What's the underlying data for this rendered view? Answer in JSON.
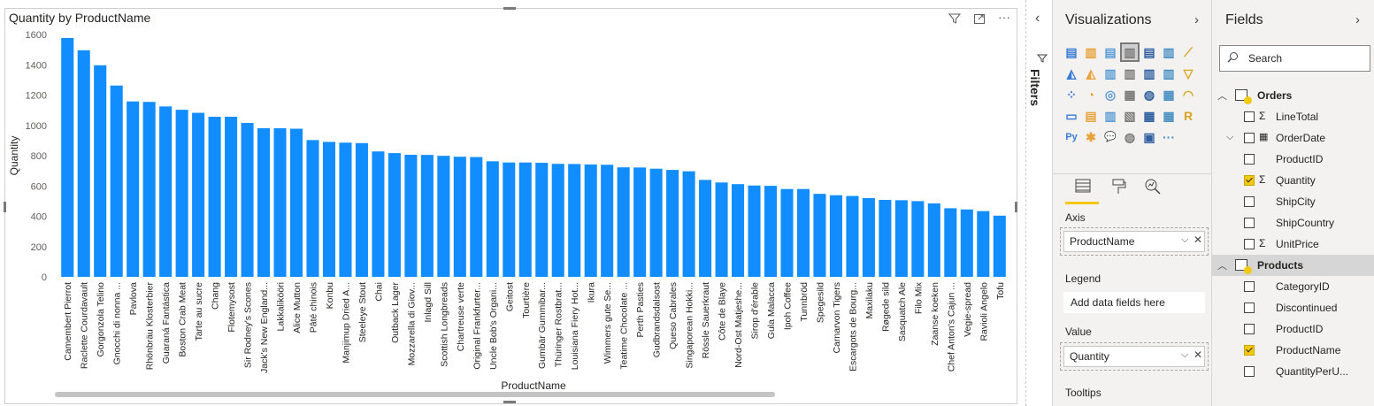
{
  "visual": {
    "title": "Quantity by ProductName",
    "header_icons": [
      "filter-icon",
      "focus-mode-icon",
      "more-options-icon"
    ]
  },
  "chart_data": {
    "type": "bar",
    "title": "Quantity by ProductName",
    "xlabel": "ProductName",
    "ylabel": "Quantity",
    "ylim": [
      0,
      1600
    ],
    "yticks": [
      0,
      200,
      400,
      600,
      800,
      1000,
      1200,
      1400,
      1600
    ],
    "grid": false,
    "bar_color": "#118dff",
    "categories": [
      "Camembert Pierrot",
      "Raclette Courdavault",
      "Gorgonzola Telino",
      "Gnocchi di nonna ...",
      "Pavlova",
      "Rhönbräu Klosterbier",
      "Guaraná Fantástica",
      "Boston Crab Meat",
      "Tarte au sucre",
      "Chang",
      "Flotemysost",
      "Sir Rodney's Scones",
      "Jack's New England...",
      "Lakkalikööri",
      "Alice Mutton",
      "Pâté chinois",
      "Konbu",
      "Manjimup Dried A...",
      "Steeleye Stout",
      "Chai",
      "Outback Lager",
      "Mozzarella di Giov...",
      "Inlagd Sill",
      "Scottish Longbreads",
      "Chartreuse verte",
      "Original Frankfurter...",
      "Uncle Bob's Organi...",
      "Geitost",
      "Tourtière",
      "Gumbär Gummibar...",
      "Thüringer Rostbrat...",
      "Louisiana Fiery Hot...",
      "Ikura",
      "Wimmers gute Se...",
      "Teatime Chocolate ...",
      "Perth Pasties",
      "Gudbrandsdalsost",
      "Queso Cabrales",
      "Singaporean Hokki...",
      "Rössle Sauerkraut",
      "Côte de Blaye",
      "Nord-Ost Matjeshe...",
      "Sirop d'érable",
      "Gula Malacca",
      "Ipoh Coffee",
      "Tunnbröd",
      "Spegesild",
      "Carnarvon Tigers",
      "Escargots de Bourg...",
      "Maxilaku",
      "Røgede sild",
      "Sasquatch Ale",
      "Filo Mix",
      "Zaanse koeken",
      "Chef Anton's Cajun ...",
      "Vegie-spread",
      "Ravioli Angelo",
      "Tofu"
    ],
    "values": [
      1577,
      1496,
      1397,
      1263,
      1158,
      1155,
      1125,
      1103,
      1083,
      1057,
      1057,
      1016,
      981,
      981,
      978,
      903,
      891,
      886,
      883,
      828,
      817,
      806,
      805,
      799,
      793,
      791,
      763,
      755,
      755,
      753,
      746,
      745,
      742,
      740,
      723,
      722,
      714,
      706,
      697,
      640,
      623,
      612,
      603,
      601,
      580,
      580,
      548,
      539,
      534,
      520,
      508,
      506,
      500,
      485,
      453,
      445,
      434,
      404
    ]
  },
  "filters_pane": {
    "label": "Filters"
  },
  "visualizations_pane": {
    "title": "Visualizations",
    "tabs": [
      "fields-tab",
      "format-tab",
      "analytics-tab"
    ],
    "wells": [
      {
        "label": "Axis",
        "value": "ProductName"
      },
      {
        "label": "Legend",
        "placeholder": "Add data fields here"
      },
      {
        "label": "Value",
        "value": "Quantity"
      },
      {
        "label": "Tooltips"
      }
    ],
    "more_label": "···"
  },
  "fields_pane": {
    "title": "Fields",
    "search_placeholder": "Search",
    "tables": [
      {
        "name": "Orders",
        "fields": [
          {
            "name": "LineTotal",
            "type": "Σ",
            "checked": false
          },
          {
            "name": "OrderDate",
            "type": "calendar",
            "checked": false,
            "expandable": true
          },
          {
            "name": "ProductID",
            "type": "",
            "checked": false
          },
          {
            "name": "Quantity",
            "type": "Σ",
            "checked": true
          },
          {
            "name": "ShipCity",
            "type": "",
            "checked": false
          },
          {
            "name": "ShipCountry",
            "type": "",
            "checked": false
          },
          {
            "name": "UnitPrice",
            "type": "Σ",
            "checked": false
          }
        ]
      },
      {
        "name": "Products",
        "selected": true,
        "fields": [
          {
            "name": "CategoryID",
            "type": "",
            "checked": false
          },
          {
            "name": "Discontinued",
            "type": "",
            "checked": false
          },
          {
            "name": "ProductID",
            "type": "",
            "checked": false
          },
          {
            "name": "ProductName",
            "type": "",
            "checked": true
          },
          {
            "name": "QuantityPerU...",
            "type": "",
            "checked": false
          }
        ]
      }
    ]
  }
}
